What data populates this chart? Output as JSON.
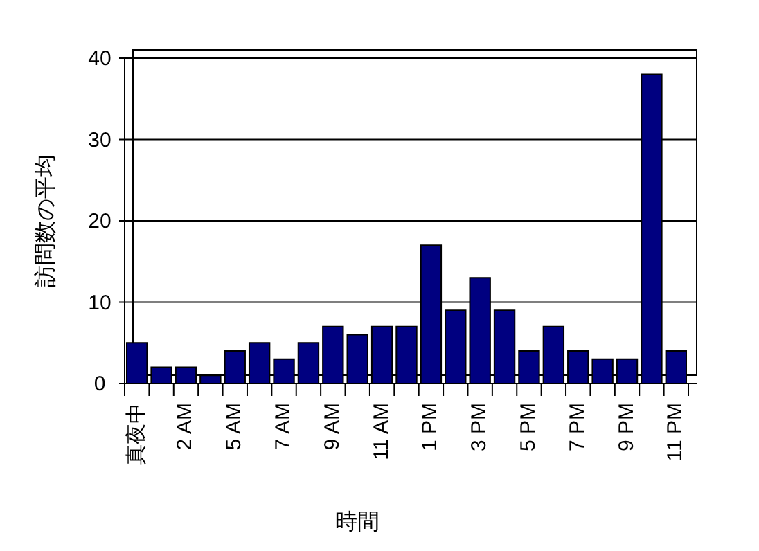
{
  "chart_data": {
    "type": "bar",
    "xlabel": "時間",
    "ylabel": "訪問数の平均",
    "categories": [
      "真夜中",
      null,
      "2 AM",
      null,
      "5 AM",
      null,
      "7 AM",
      null,
      "9 AM",
      null,
      "11 AM",
      null,
      "1 PM",
      null,
      "3 PM",
      null,
      "5 PM",
      null,
      "7 PM",
      null,
      "9 PM",
      null,
      "11 PM"
    ],
    "values": [
      5,
      2,
      2,
      1,
      4,
      5,
      3,
      5,
      7,
      6,
      7,
      7,
      17,
      9,
      13,
      9,
      4,
      7,
      4,
      3,
      3,
      38,
      4
    ],
    "color": "#000080",
    "ylim": [
      0,
      40
    ],
    "yticks": [
      0,
      10,
      20,
      30,
      40
    ],
    "grid": "y"
  }
}
